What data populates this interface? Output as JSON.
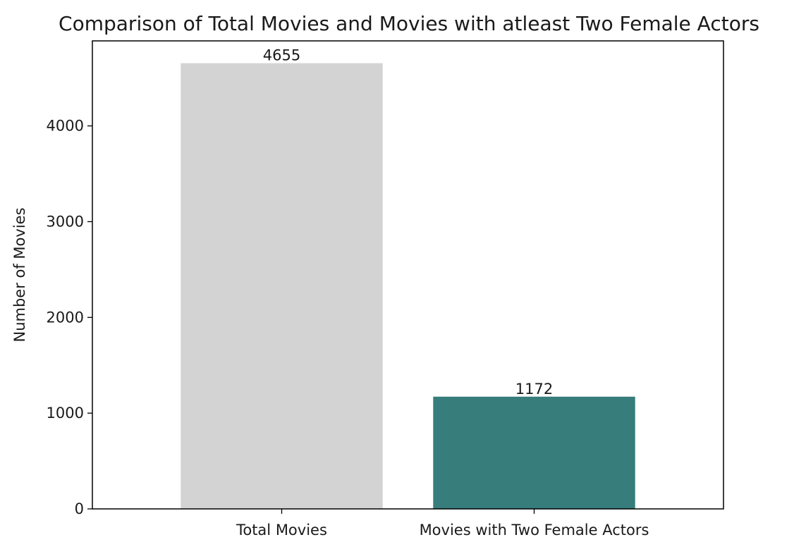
{
  "chart_data": {
    "type": "bar",
    "title": "Comparison of Total Movies and Movies with atleast Two Female Actors",
    "xlabel": "",
    "ylabel": "Number of Movies",
    "categories": [
      "Total Movies",
      "Movies with Two Female Actors"
    ],
    "values": [
      4655,
      1172
    ],
    "data_labels": [
      "4655",
      "1172"
    ],
    "bar_colors": [
      "#d3d3d3",
      "#367d7b"
    ],
    "ylim": [
      0,
      4888
    ],
    "yticks": [
      0,
      1000,
      2000,
      3000,
      4000
    ],
    "ytick_labels": [
      "0",
      "1000",
      "2000",
      "3000",
      "4000"
    ],
    "grid": false,
    "legend": "none"
  }
}
